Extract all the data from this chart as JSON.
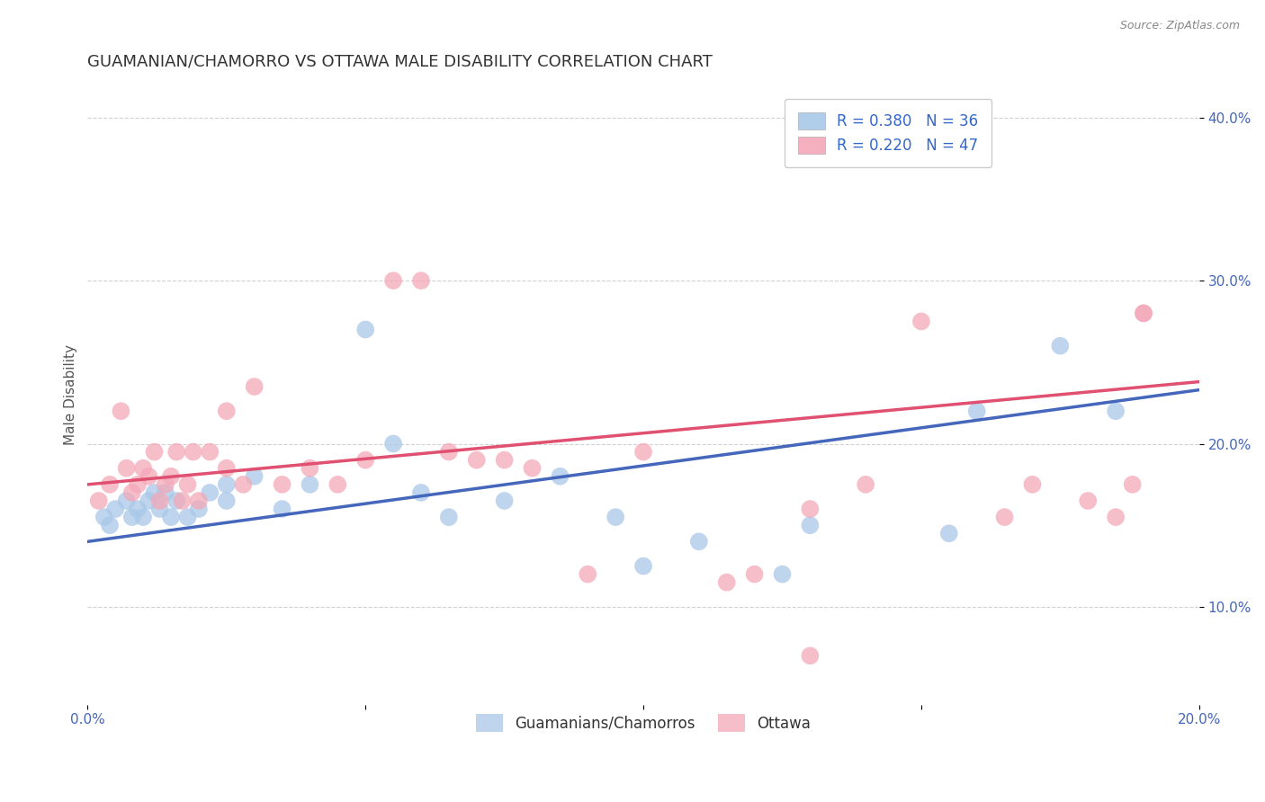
{
  "title": "GUAMANIAN/CHAMORRO VS OTTAWA MALE DISABILITY CORRELATION CHART",
  "source": "Source: ZipAtlas.com",
  "ylabel_label": "Male Disability",
  "xlim": [
    0.0,
    0.2
  ],
  "ylim": [
    0.04,
    0.42
  ],
  "xticks": [
    0.0,
    0.05,
    0.1,
    0.15,
    0.2
  ],
  "yticks": [
    0.1,
    0.2,
    0.3,
    0.4
  ],
  "ytick_labels": [
    "10.0%",
    "20.0%",
    "30.0%",
    "40.0%"
  ],
  "xtick_labels": [
    "0.0%",
    "",
    "",
    "",
    "20.0%"
  ],
  "blue_R": 0.38,
  "blue_N": 36,
  "pink_R": 0.22,
  "pink_N": 47,
  "blue_color": "#a8c8e8",
  "pink_color": "#f4a8b8",
  "blue_line_color": "#4466bb",
  "pink_line_color": "#e05070",
  "blue_line_x0": 0.0,
  "blue_line_y0": 0.14,
  "blue_line_x1": 0.2,
  "blue_line_y1": 0.233,
  "pink_line_x0": 0.0,
  "pink_line_y0": 0.175,
  "pink_line_x1": 0.2,
  "pink_line_y1": 0.238,
  "blue_x": [
    0.003,
    0.004,
    0.005,
    0.007,
    0.008,
    0.009,
    0.01,
    0.011,
    0.012,
    0.013,
    0.014,
    0.015,
    0.016,
    0.018,
    0.02,
    0.022,
    0.025,
    0.025,
    0.03,
    0.035,
    0.04,
    0.05,
    0.055,
    0.06,
    0.065,
    0.075,
    0.085,
    0.095,
    0.1,
    0.11,
    0.125,
    0.13,
    0.155,
    0.16,
    0.175,
    0.185
  ],
  "blue_y": [
    0.155,
    0.15,
    0.16,
    0.165,
    0.155,
    0.16,
    0.155,
    0.165,
    0.17,
    0.16,
    0.17,
    0.155,
    0.165,
    0.155,
    0.16,
    0.17,
    0.175,
    0.165,
    0.18,
    0.16,
    0.175,
    0.27,
    0.2,
    0.17,
    0.155,
    0.165,
    0.18,
    0.155,
    0.125,
    0.14,
    0.12,
    0.15,
    0.145,
    0.22,
    0.26,
    0.22
  ],
  "pink_x": [
    0.002,
    0.004,
    0.006,
    0.007,
    0.008,
    0.009,
    0.01,
    0.011,
    0.012,
    0.013,
    0.014,
    0.015,
    0.016,
    0.017,
    0.018,
    0.019,
    0.02,
    0.022,
    0.025,
    0.025,
    0.028,
    0.03,
    0.035,
    0.04,
    0.045,
    0.05,
    0.055,
    0.06,
    0.065,
    0.07,
    0.075,
    0.08,
    0.09,
    0.1,
    0.115,
    0.12,
    0.13,
    0.15,
    0.165,
    0.17,
    0.18,
    0.185,
    0.188,
    0.19,
    0.13,
    0.14,
    0.19
  ],
  "pink_y": [
    0.165,
    0.175,
    0.22,
    0.185,
    0.17,
    0.175,
    0.185,
    0.18,
    0.195,
    0.165,
    0.175,
    0.18,
    0.195,
    0.165,
    0.175,
    0.195,
    0.165,
    0.195,
    0.22,
    0.185,
    0.175,
    0.235,
    0.175,
    0.185,
    0.175,
    0.19,
    0.3,
    0.3,
    0.195,
    0.19,
    0.19,
    0.185,
    0.12,
    0.195,
    0.115,
    0.12,
    0.07,
    0.275,
    0.155,
    0.175,
    0.165,
    0.155,
    0.175,
    0.28,
    0.16,
    0.175,
    0.28
  ],
  "background_color": "#ffffff",
  "grid_color": "#cccccc",
  "title_fontsize": 13,
  "axis_label_fontsize": 11,
  "tick_fontsize": 11,
  "legend_fontsize": 12
}
